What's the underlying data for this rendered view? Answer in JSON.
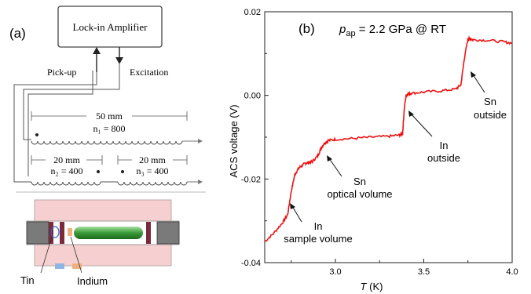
{
  "panel_a": {
    "label": "(a)",
    "lockin_label": "Lock-in Amplifier",
    "pickup_label": "Pick-up",
    "excitation_label": "Excitation",
    "coil_1": {
      "length": "50 mm",
      "turns": "n₁ = 800"
    },
    "coil_2": {
      "length": "20 mm",
      "turns": "n₂ = 400"
    },
    "coil_3": {
      "length": "20 mm",
      "turns": "n₃ = 400"
    },
    "tin_label": "Tin",
    "indium_label": "Indium",
    "colors": {
      "cell_body": "#f6d0d0",
      "sample": "#3a9a3a",
      "tin": "#8fb4e6",
      "indium": "#f0b080",
      "plug": "#7a7a7a",
      "gasket": "#7a2a3a"
    }
  },
  "panel_b": {
    "label": "(b)",
    "p_symbol": "p",
    "p_subscript": "ap",
    "p_value": " = 2.2 GPa @ RT",
    "annotations": [
      {
        "line1": "In",
        "line2": "sample volume"
      },
      {
        "line1": "Sn",
        "line2": "optical volume"
      },
      {
        "line1": "In",
        "line2": "outside"
      },
      {
        "line1": "Sn",
        "line2": "outside"
      }
    ]
  },
  "chart_data": {
    "type": "line",
    "title": "",
    "xlabel_symbol": "T",
    "xlabel_unit": " (K)",
    "ylabel": "ACS voltage (V)",
    "xlim": [
      2.6,
      4.0
    ],
    "ylim": [
      -0.04,
      0.02
    ],
    "x_ticks": [
      3.0,
      3.5,
      4.0
    ],
    "x_tick_labels": [
      "3.0",
      "3.5",
      "4.0"
    ],
    "y_ticks": [
      -0.04,
      -0.02,
      0.0,
      0.02
    ],
    "y_tick_labels": [
      "-0.04",
      "-0.02",
      "0.00",
      "0.02"
    ],
    "grid": false,
    "line_color": "#ee1111",
    "series": [
      {
        "x": [
          2.6,
          2.65,
          2.7,
          2.73,
          2.75,
          2.77,
          2.79,
          2.81,
          2.83,
          2.85,
          2.87,
          2.9,
          2.92,
          2.94,
          2.96,
          3.0,
          3.1,
          3.2,
          3.3,
          3.36,
          3.38,
          3.39,
          3.4,
          3.41,
          3.43,
          3.5,
          3.6,
          3.68,
          3.71,
          3.73,
          3.75,
          3.76,
          3.78,
          3.85,
          3.95,
          4.0
        ],
        "y": [
          -0.035,
          -0.033,
          -0.0305,
          -0.0285,
          -0.023,
          -0.019,
          -0.0175,
          -0.0168,
          -0.0162,
          -0.016,
          -0.0158,
          -0.0145,
          -0.0125,
          -0.0113,
          -0.0108,
          -0.0105,
          -0.0103,
          -0.01,
          -0.0098,
          -0.0095,
          -0.0092,
          -0.003,
          0.0,
          0.0003,
          0.0005,
          0.0008,
          0.0011,
          0.0015,
          0.0025,
          0.009,
          0.0135,
          0.0136,
          0.0133,
          0.0132,
          0.0128,
          0.0125
        ]
      }
    ]
  }
}
